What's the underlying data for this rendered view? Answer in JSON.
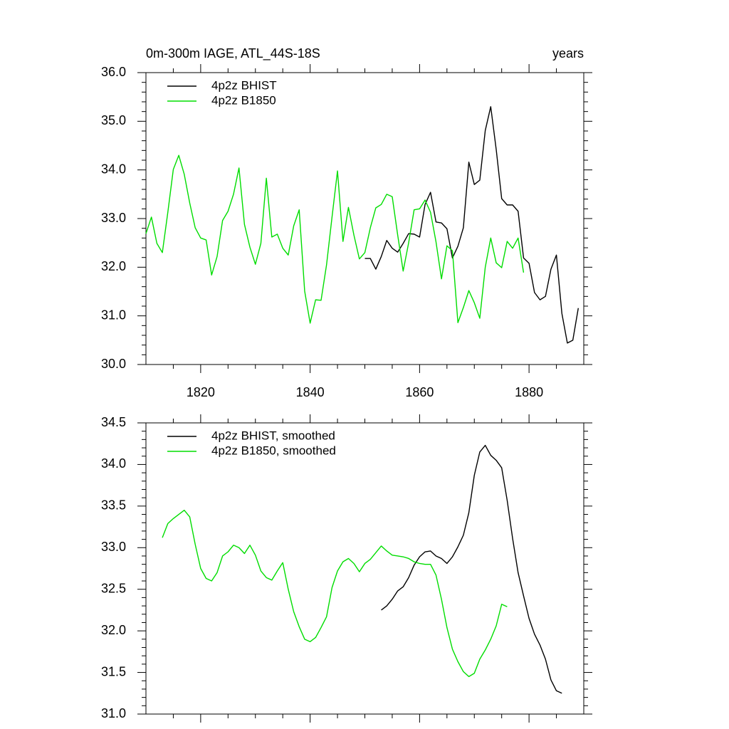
{
  "chart_data": [
    {
      "type": "line",
      "title": "0m-300m IAGE, ATL_44S-18S",
      "right_title": "years",
      "xlim": [
        1810,
        1890
      ],
      "ylim": [
        30,
        36
      ],
      "xticks": [
        1820,
        1840,
        1860,
        1880
      ],
      "yticks": [
        {
          "value": 30,
          "label": "30.0"
        },
        {
          "value": 31,
          "label": "31.0"
        },
        {
          "value": 32,
          "label": "32.0"
        },
        {
          "value": 33,
          "label": "33.0"
        },
        {
          "value": 34,
          "label": "34.0"
        },
        {
          "value": 35,
          "label": "35.0"
        },
        {
          "value": 36,
          "label": "36.0"
        }
      ],
      "series": [
        {
          "name": "4p2z BHIST",
          "color": "#000000",
          "x": [
            1850,
            1851,
            1852,
            1853,
            1854,
            1855,
            1856,
            1857,
            1858,
            1859,
            1860,
            1861,
            1862,
            1863,
            1864,
            1865,
            1866,
            1867,
            1868,
            1869,
            1870,
            1871,
            1872,
            1873,
            1874,
            1875,
            1876,
            1877,
            1878,
            1879,
            1880,
            1881,
            1882,
            1883,
            1884,
            1885,
            1886,
            1887,
            1888,
            1889
          ],
          "values": [
            32.18,
            32.18,
            31.96,
            32.22,
            32.55,
            32.39,
            32.31,
            32.49,
            32.69,
            32.68,
            32.62,
            33.29,
            33.54,
            32.93,
            32.91,
            32.79,
            32.19,
            32.43,
            32.81,
            34.16,
            33.7,
            33.79,
            34.81,
            35.3,
            34.42,
            33.41,
            33.28,
            33.28,
            33.15,
            32.19,
            32.08,
            31.48,
            31.33,
            31.4,
            31.96,
            32.25,
            31.05,
            30.44,
            30.5,
            31.16
          ]
        },
        {
          "name": "4p2z B1850",
          "color": "#00dd00",
          "x": [
            1810,
            1811,
            1812,
            1813,
            1814,
            1815,
            1816,
            1817,
            1818,
            1819,
            1820,
            1821,
            1822,
            1823,
            1824,
            1825,
            1826,
            1827,
            1828,
            1829,
            1830,
            1831,
            1832,
            1833,
            1834,
            1835,
            1836,
            1837,
            1838,
            1839,
            1840,
            1841,
            1842,
            1843,
            1844,
            1845,
            1846,
            1847,
            1848,
            1849,
            1850,
            1851,
            1852,
            1853,
            1854,
            1855,
            1856,
            1857,
            1858,
            1859,
            1860,
            1861,
            1862,
            1863,
            1864,
            1865,
            1866,
            1867,
            1868,
            1869,
            1870,
            1871,
            1872,
            1873,
            1874,
            1875,
            1876,
            1877,
            1878,
            1879
          ],
          "values": [
            32.69,
            33.03,
            32.49,
            32.3,
            33.13,
            34.01,
            34.3,
            33.91,
            33.32,
            32.81,
            32.6,
            32.56,
            31.84,
            32.22,
            32.96,
            33.15,
            33.5,
            34.04,
            32.88,
            32.41,
            32.06,
            32.49,
            33.83,
            32.62,
            32.68,
            32.39,
            32.25,
            32.85,
            33.18,
            31.51,
            30.85,
            31.33,
            31.32,
            32.05,
            33.03,
            33.98,
            32.53,
            33.23,
            32.66,
            32.17,
            32.3,
            32.81,
            33.22,
            33.29,
            33.5,
            33.45,
            32.66,
            31.92,
            32.5,
            33.18,
            33.2,
            33.38,
            33.13,
            32.52,
            31.76,
            32.44,
            32.34,
            30.86,
            31.17,
            31.52,
            31.27,
            30.95,
            32.0,
            32.6,
            32.09,
            31.99,
            32.53,
            32.39,
            32.6,
            31.89
          ]
        }
      ]
    },
    {
      "type": "line",
      "xlim": [
        1810,
        1890
      ],
      "ylim": [
        31,
        34.5
      ],
      "xticks": [
        1820,
        1840,
        1860,
        1880
      ],
      "xtick_labels_shown": false,
      "yticks": [
        {
          "value": 31,
          "label": "31.0"
        },
        31.5,
        {
          "value": 32,
          "label": "32.0"
        },
        32.5,
        {
          "value": 33,
          "label": "33.0"
        },
        33.5,
        {
          "value": 34,
          "label": "34.0"
        },
        34.5
      ],
      "series": [
        {
          "name": "4p2z BHIST, smoothed",
          "color": "#000000",
          "x": [
            1853,
            1854,
            1855,
            1856,
            1857,
            1858,
            1859,
            1860,
            1861,
            1862,
            1863,
            1864,
            1865,
            1866,
            1867,
            1868,
            1869,
            1870,
            1871,
            1872,
            1873,
            1874,
            1875,
            1876,
            1877,
            1878,
            1879,
            1880,
            1881,
            1882,
            1883,
            1884,
            1885,
            1886
          ],
          "values": [
            32.25,
            32.3,
            32.38,
            32.48,
            32.53,
            32.64,
            32.79,
            32.89,
            32.95,
            32.96,
            32.9,
            32.87,
            32.81,
            32.89,
            33.01,
            33.15,
            33.42,
            33.87,
            34.15,
            34.23,
            34.11,
            34.05,
            33.96,
            33.57,
            33.11,
            32.7,
            32.42,
            32.15,
            31.96,
            31.83,
            31.66,
            31.41,
            31.28,
            31.25
          ]
        },
        {
          "name": "4p2z B1850, smoothed",
          "color": "#00dd00",
          "x": [
            1813,
            1814,
            1815,
            1816,
            1817,
            1818,
            1819,
            1820,
            1821,
            1822,
            1823,
            1824,
            1825,
            1826,
            1827,
            1828,
            1829,
            1830,
            1831,
            1832,
            1833,
            1834,
            1835,
            1836,
            1837,
            1838,
            1839,
            1840,
            1841,
            1842,
            1843,
            1844,
            1845,
            1846,
            1847,
            1848,
            1849,
            1850,
            1851,
            1852,
            1853,
            1854,
            1855,
            1856,
            1857,
            1858,
            1859,
            1860,
            1861,
            1862,
            1863,
            1864,
            1865,
            1866,
            1867,
            1868,
            1869,
            1870,
            1871,
            1872,
            1873,
            1874,
            1875,
            1876
          ],
          "values": [
            33.12,
            33.29,
            33.35,
            33.4,
            33.45,
            33.37,
            33.04,
            32.75,
            32.63,
            32.6,
            32.7,
            32.9,
            32.95,
            33.03,
            33.0,
            32.93,
            33.03,
            32.91,
            32.72,
            32.64,
            32.61,
            32.72,
            32.82,
            32.5,
            32.23,
            32.05,
            31.9,
            31.87,
            31.92,
            32.04,
            32.17,
            32.52,
            32.72,
            32.83,
            32.87,
            32.81,
            32.71,
            32.81,
            32.86,
            32.94,
            33.02,
            32.96,
            32.91,
            32.9,
            32.89,
            32.87,
            32.83,
            32.81,
            32.8,
            32.8,
            32.67,
            32.38,
            32.04,
            31.78,
            31.63,
            31.51,
            31.45,
            31.49,
            31.66,
            31.77,
            31.9,
            32.06,
            32.32,
            32.29
          ]
        }
      ]
    }
  ]
}
